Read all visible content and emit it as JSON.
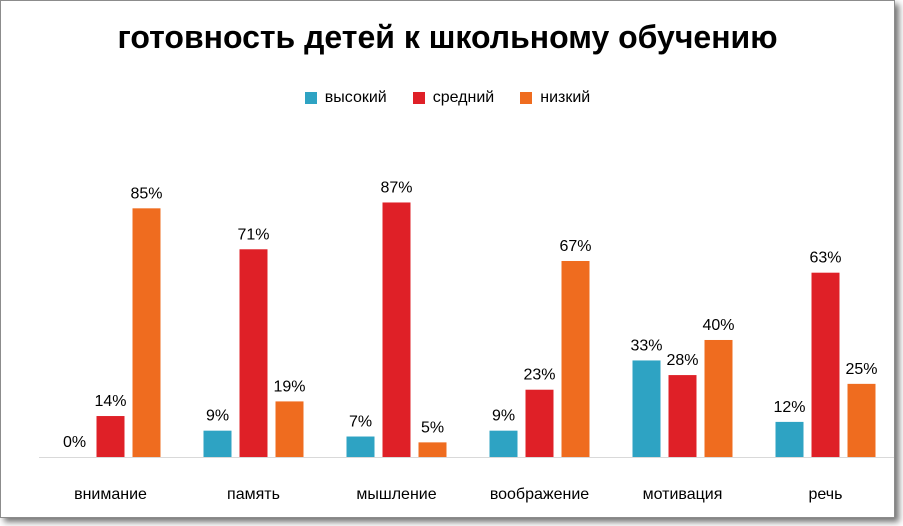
{
  "chart_data": {
    "type": "bar",
    "title": "готовность детей к школьному обучению",
    "categories": [
      "внимание",
      "память",
      "мышление",
      "воображение",
      "мотивация",
      "речь"
    ],
    "series": [
      {
        "name": "высокий",
        "color": "#2ea3c3",
        "values": [
          0,
          9,
          7,
          9,
          33,
          12
        ]
      },
      {
        "name": "средний",
        "color": "#df2027",
        "values": [
          14,
          71,
          87,
          23,
          28,
          63
        ]
      },
      {
        "name": "низкий",
        "color": "#ef6c1f",
        "values": [
          85,
          19,
          5,
          67,
          40,
          25
        ]
      }
    ],
    "value_suffix": "%",
    "ylim": [
      0,
      100
    ],
    "legend": "top",
    "grid": false,
    "xlabel": "",
    "ylabel": ""
  }
}
